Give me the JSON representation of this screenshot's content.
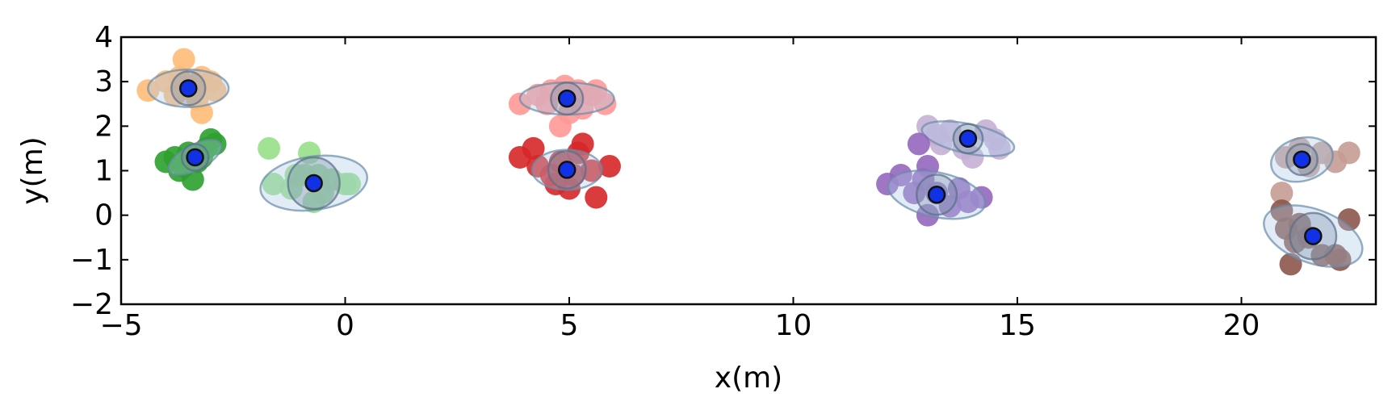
{
  "chart_data": {
    "type": "scatter",
    "title": "",
    "xlabel": "x(m)",
    "ylabel": "y(m)",
    "xlim": [
      -5,
      23
    ],
    "ylim": [
      -2,
      4
    ],
    "xticks": [
      -5,
      0,
      5,
      10,
      15,
      20
    ],
    "yticks": [
      -2,
      -1,
      0,
      1,
      2,
      3,
      4
    ],
    "xtick_labels": [
      "−5",
      "0",
      "5",
      "10",
      "15",
      "20"
    ],
    "ytick_labels": [
      "−2",
      "−1",
      "0",
      "1",
      "2",
      "3",
      "4"
    ],
    "grid": false,
    "clusters": [
      {
        "color": "#ffbb78",
        "center": [
          -3.5,
          2.85
        ],
        "ellipse": {
          "rx": 0.9,
          "ry": 0.42,
          "angle": 0
        },
        "inner_radius": 0.38,
        "points": [
          [
            -3.6,
            3.5
          ],
          [
            -4.4,
            2.8
          ],
          [
            -4.0,
            3.0
          ],
          [
            -3.8,
            2.7
          ],
          [
            -3.5,
            2.9
          ],
          [
            -3.2,
            3.1
          ],
          [
            -3.0,
            3.0
          ],
          [
            -2.9,
            2.8
          ],
          [
            -3.3,
            2.6
          ],
          [
            -3.2,
            2.3
          ],
          [
            -3.7,
            3.1
          ],
          [
            -3.4,
            2.8
          ]
        ]
      },
      {
        "color": "#2ca02c",
        "center": [
          -3.35,
          1.3
        ],
        "ellipse": {
          "rx": 0.65,
          "ry": 0.28,
          "angle": 28
        },
        "inner_radius": 0.3,
        "points": [
          [
            -4.0,
            1.2
          ],
          [
            -3.7,
            1.0
          ],
          [
            -3.5,
            1.4
          ],
          [
            -3.3,
            1.2
          ],
          [
            -3.1,
            1.5
          ],
          [
            -3.0,
            1.7
          ],
          [
            -2.9,
            1.6
          ],
          [
            -3.4,
            0.8
          ],
          [
            -3.6,
            1.1
          ],
          [
            -3.2,
            1.3
          ],
          [
            -3.8,
            1.3
          ]
        ]
      },
      {
        "color": "#98df8a",
        "center": [
          -0.7,
          0.72
        ],
        "ellipse": {
          "rx": 1.2,
          "ry": 0.6,
          "angle": 8
        },
        "inner_radius": 0.58,
        "points": [
          [
            -1.7,
            1.5
          ],
          [
            -0.8,
            1.4
          ],
          [
            -1.6,
            0.7
          ],
          [
            -1.2,
            0.6
          ],
          [
            -0.9,
            0.9
          ],
          [
            -0.5,
            0.5
          ],
          [
            -0.3,
            0.8
          ],
          [
            0.0,
            0.7
          ],
          [
            0.1,
            0.7
          ],
          [
            -0.7,
            0.3
          ],
          [
            -1.1,
            0.9
          ],
          [
            -0.6,
            0.9
          ]
        ]
      },
      {
        "color": "#ff9896",
        "center": [
          4.95,
          2.62
        ],
        "ellipse": {
          "rx": 1.05,
          "ry": 0.36,
          "angle": 0
        },
        "inner_radius": 0.36,
        "points": [
          [
            3.9,
            2.5
          ],
          [
            4.3,
            2.7
          ],
          [
            4.6,
            2.8
          ],
          [
            4.9,
            2.9
          ],
          [
            5.2,
            2.8
          ],
          [
            5.5,
            2.7
          ],
          [
            5.8,
            2.5
          ],
          [
            5.0,
            2.3
          ],
          [
            4.8,
            2.0
          ],
          [
            4.5,
            2.5
          ],
          [
            5.3,
            2.4
          ],
          [
            5.6,
            2.8
          ]
        ]
      },
      {
        "color": "#d62728",
        "center": [
          4.95,
          1.02
        ],
        "ellipse": {
          "rx": 0.78,
          "ry": 0.45,
          "angle": 0
        },
        "inner_radius": 0.42,
        "points": [
          [
            3.9,
            1.3
          ],
          [
            4.2,
            1.5
          ],
          [
            4.3,
            1.1
          ],
          [
            4.6,
            0.9
          ],
          [
            4.7,
            0.7
          ],
          [
            5.0,
            0.6
          ],
          [
            5.2,
            1.4
          ],
          [
            5.3,
            1.6
          ],
          [
            5.5,
            1.0
          ],
          [
            5.6,
            0.4
          ],
          [
            5.9,
            1.1
          ],
          [
            4.8,
            1.2
          ],
          [
            5.1,
            0.9
          ]
        ]
      },
      {
        "color": "#c5b0d5",
        "center": [
          13.9,
          1.72
        ],
        "ellipse": {
          "rx": 1.05,
          "ry": 0.33,
          "angle": -12
        },
        "inner_radius": 0.33,
        "points": [
          [
            13.0,
            2.0
          ],
          [
            13.2,
            1.8
          ],
          [
            13.5,
            1.9
          ],
          [
            13.8,
            1.5
          ],
          [
            14.0,
            1.3
          ],
          [
            14.3,
            1.9
          ],
          [
            14.5,
            1.7
          ],
          [
            14.6,
            1.5
          ],
          [
            13.3,
            1.6
          ]
        ]
      },
      {
        "color": "#9467bd",
        "center": [
          13.2,
          0.46
        ],
        "ellipse": {
          "rx": 1.1,
          "ry": 0.5,
          "angle": -12
        },
        "inner_radius": 0.45,
        "points": [
          [
            12.1,
            0.7
          ],
          [
            12.4,
            0.9
          ],
          [
            12.8,
            1.6
          ],
          [
            13.0,
            1.1
          ],
          [
            13.2,
            0.5
          ],
          [
            13.5,
            0.2
          ],
          [
            13.7,
            0.6
          ],
          [
            13.9,
            0.3
          ],
          [
            14.2,
            0.4
          ],
          [
            13.0,
            0.0
          ],
          [
            12.7,
            0.5
          ],
          [
            12.9,
            0.8
          ]
        ]
      },
      {
        "color": "#c49c94",
        "center": [
          21.35,
          1.25
        ],
        "ellipse": {
          "rx": 0.7,
          "ry": 0.48,
          "angle": 15
        },
        "inner_radius": 0.35,
        "points": [
          [
            20.9,
            0.5
          ],
          [
            21.0,
            1.3
          ],
          [
            21.3,
            1.5
          ],
          [
            21.5,
            1.1
          ],
          [
            21.8,
            1.4
          ],
          [
            22.1,
            1.2
          ],
          [
            22.4,
            1.4
          ]
        ]
      },
      {
        "color": "#8c564b",
        "center": [
          21.6,
          -0.47
        ],
        "ellipse": {
          "rx": 1.15,
          "ry": 0.6,
          "angle": -20
        },
        "inner_radius": 0.52,
        "points": [
          [
            20.9,
            0.1
          ],
          [
            21.0,
            -0.3
          ],
          [
            21.2,
            -0.6
          ],
          [
            21.1,
            -1.1
          ],
          [
            21.5,
            -0.5
          ],
          [
            21.8,
            -0.9
          ],
          [
            22.1,
            -0.9
          ],
          [
            22.2,
            -1.0
          ],
          [
            22.4,
            -0.1
          ],
          [
            21.3,
            -0.2
          ]
        ]
      }
    ]
  }
}
